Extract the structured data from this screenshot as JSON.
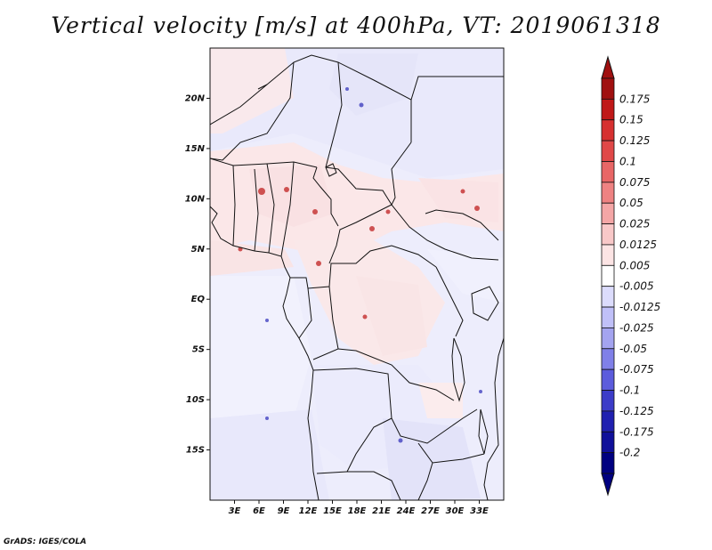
{
  "title": "Vertical velocity [m/s] at 400hPa, VT: 2019061318",
  "credit": "GrADS: IGES/COLA",
  "map": {
    "lon_range": [
      0,
      36
    ],
    "lat_range": [
      -20,
      25
    ],
    "lat_ticks": [
      {
        "value": 20,
        "label": "20N"
      },
      {
        "value": 15,
        "label": "15N"
      },
      {
        "value": 10,
        "label": "10N"
      },
      {
        "value": 5,
        "label": "5N"
      },
      {
        "value": 0,
        "label": "EQ"
      },
      {
        "value": -5,
        "label": "5S"
      },
      {
        "value": -10,
        "label": "10S"
      },
      {
        "value": -15,
        "label": "15S"
      }
    ],
    "lon_ticks": [
      {
        "value": 3,
        "label": "3E"
      },
      {
        "value": 6,
        "label": "6E"
      },
      {
        "value": 9,
        "label": "9E"
      },
      {
        "value": 12,
        "label": "12E"
      },
      {
        "value": 15,
        "label": "15E"
      },
      {
        "value": 18,
        "label": "18E"
      },
      {
        "value": 21,
        "label": "21E"
      },
      {
        "value": 24,
        "label": "24E"
      },
      {
        "value": 27,
        "label": "27E"
      },
      {
        "value": 30,
        "label": "30E"
      },
      {
        "value": 33,
        "label": "33E"
      }
    ]
  },
  "colorbar": {
    "labels": [
      "0.175",
      "0.15",
      "0.125",
      "0.1",
      "0.075",
      "0.05",
      "0.025",
      "0.0125",
      "0.005",
      "-0.005",
      "-0.0125",
      "-0.025",
      "-0.05",
      "-0.075",
      "-0.1",
      "-0.125",
      "-0.175",
      "-0.2"
    ],
    "colors": [
      "#a01010",
      "#c01818",
      "#d63030",
      "#e04848",
      "#e86666",
      "#ee8282",
      "#f4a6a6",
      "#f8c8c8",
      "#fce4e4",
      "#ffffff",
      "#dcdcfc",
      "#c0c0f8",
      "#a4a4f0",
      "#8080e8",
      "#5c5cdc",
      "#3c3cc8",
      "#2020b0",
      "#10109a",
      "#000080"
    ],
    "top_color": "#a01010",
    "bottom_color": "#000080"
  }
}
